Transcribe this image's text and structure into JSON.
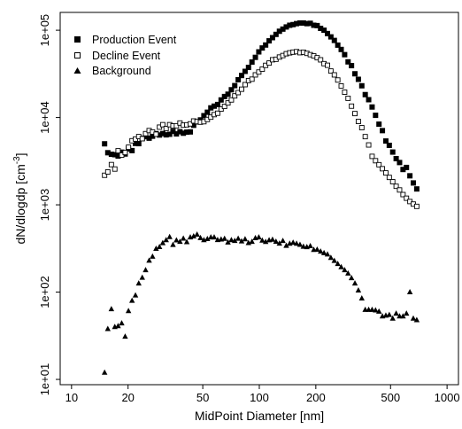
{
  "chart_data": {
    "type": "scatter",
    "xlabel": "MidPoint Diameter [nm]",
    "ylabel": "dN/dlogdp  [cm",
    "ylabel_exp": "-3",
    "ylabel_close": "]",
    "xscale": "log",
    "yscale": "log",
    "xlim": [
      8.7,
      1150
    ],
    "ylim": [
      8.7,
      160000
    ],
    "xticks": [
      10,
      20,
      50,
      100,
      200,
      500,
      1000
    ],
    "xtick_labels": [
      "10",
      "20",
      "50",
      "100",
      "200",
      "500",
      "1000"
    ],
    "yticks": [
      10,
      100,
      1000,
      10000,
      100000
    ],
    "ytick_labels": [
      "1e+01",
      "1e+02",
      "1e+03",
      "1e+04",
      "1e+05"
    ],
    "legend_position": "top-left",
    "grid": false,
    "series": [
      {
        "name": "Production Event",
        "marker": "filled-square",
        "x": [
          15.0,
          15.6,
          16.3,
          17.0,
          17.7,
          18.5,
          19.3,
          20.1,
          21.0,
          21.9,
          22.8,
          23.8,
          24.8,
          25.9,
          27.0,
          28.2,
          29.4,
          30.6,
          31.9,
          33.3,
          34.7,
          36.2,
          37.8,
          39.4,
          41.1,
          42.9,
          44.7,
          46.6,
          48.6,
          50.7,
          52.9,
          55.2,
          57.5,
          60.0,
          62.6,
          65.3,
          68.1,
          71.0,
          74.0,
          77.2,
          80.5,
          84.0,
          87.6,
          91.4,
          95.3,
          99.4,
          103.7,
          108.1,
          112.8,
          117.6,
          122.7,
          128.0,
          133.5,
          139.2,
          145.2,
          151.4,
          157.9,
          164.7,
          171.8,
          179.2,
          186.9,
          195.0,
          203.3,
          212.1,
          221.2,
          230.7,
          240.6,
          251.0,
          261.8,
          273.0,
          284.8,
          297.0,
          309.8,
          323.1,
          337.0,
          351.5,
          366.6,
          382.4,
          398.8,
          416.0,
          433.9,
          452.5,
          472.0,
          492.3,
          513.5,
          535.6,
          558.6,
          582.7,
          607.7,
          633.9,
          661.1,
          689.6
        ],
        "y": [
          5000,
          3950,
          3790,
          3750,
          3620,
          4010,
          3820,
          4370,
          4180,
          5050,
          5020,
          5760,
          6030,
          5800,
          6110,
          6540,
          6300,
          6550,
          6330,
          6430,
          6940,
          6490,
          6880,
          6610,
          6800,
          6840,
          8150,
          8920,
          9390,
          10500,
          11500,
          12900,
          13500,
          14100,
          15900,
          17400,
          18500,
          20800,
          23200,
          27100,
          30300,
          33800,
          37500,
          43200,
          48900,
          56500,
          62600,
          67700,
          75600,
          82200,
          89600,
          97300,
          103000,
          109000,
          114000,
          116000,
          119000,
          121000,
          121000,
          119000,
          120000,
          114000,
          113000,
          105000,
          100000,
          91600,
          83900,
          76400,
          67500,
          60200,
          52500,
          43400,
          39300,
          31700,
          27400,
          23100,
          18300,
          16000,
          13200,
          10600,
          8390,
          7080,
          5380,
          4800,
          4020,
          3380,
          3050,
          2540,
          2680,
          2150,
          1780,
          1520
        ]
      },
      {
        "name": "Decline Event",
        "marker": "open-square",
        "x": [
          15.0,
          15.6,
          16.3,
          17.0,
          17.7,
          18.5,
          19.3,
          20.1,
          21.0,
          21.9,
          22.8,
          23.8,
          24.8,
          25.9,
          27.0,
          28.2,
          29.4,
          30.6,
          31.9,
          33.3,
          34.7,
          36.2,
          37.8,
          39.4,
          41.1,
          42.9,
          44.7,
          46.6,
          48.6,
          50.7,
          52.9,
          55.2,
          57.5,
          60.0,
          62.6,
          65.3,
          68.1,
          71.0,
          74.0,
          77.2,
          80.5,
          84.0,
          87.6,
          91.4,
          95.3,
          99.4,
          103.7,
          108.1,
          112.8,
          117.6,
          122.7,
          128.0,
          133.5,
          139.2,
          145.2,
          151.4,
          157.9,
          164.7,
          171.8,
          179.2,
          186.9,
          195.0,
          203.3,
          212.1,
          221.2,
          230.7,
          240.6,
          251.0,
          261.8,
          273.0,
          284.8,
          297.0,
          309.8,
          323.1,
          337.0,
          351.5,
          366.6,
          382.4,
          398.8,
          416.0,
          433.9,
          452.5,
          472.0,
          492.3,
          513.5,
          535.6,
          558.6,
          582.7,
          607.7,
          633.9,
          661.1,
          689.6
        ],
        "y": [
          2180,
          2380,
          2890,
          2570,
          4160,
          3710,
          3970,
          4570,
          5420,
          5670,
          6050,
          5720,
          6540,
          7090,
          6830,
          6440,
          7760,
          8280,
          7480,
          8280,
          8020,
          8050,
          8650,
          8180,
          8250,
          8460,
          9130,
          8970,
          8850,
          8960,
          9500,
          10100,
          10800,
          11200,
          12500,
          13400,
          14700,
          15900,
          17700,
          19300,
          21100,
          23800,
          26500,
          27500,
          30800,
          33200,
          35800,
          39600,
          42100,
          45900,
          46500,
          49300,
          51300,
          53800,
          55100,
          56100,
          56800,
          55300,
          56000,
          54300,
          52500,
          50800,
          48400,
          45800,
          41400,
          39700,
          34100,
          30800,
          26900,
          23000,
          19500,
          16600,
          13500,
          11100,
          9010,
          7650,
          6040,
          4850,
          3590,
          3200,
          2880,
          2590,
          2320,
          2060,
          1840,
          1630,
          1480,
          1310,
          1190,
          1090,
          1020,
          960
        ]
      },
      {
        "name": "Background",
        "marker": "filled-triangle",
        "x": [
          15.0,
          15.6,
          16.3,
          17.0,
          17.7,
          18.5,
          19.3,
          20.1,
          21.0,
          21.9,
          22.8,
          23.8,
          24.8,
          25.9,
          27.0,
          28.2,
          29.4,
          30.6,
          31.9,
          33.3,
          34.7,
          36.2,
          37.8,
          39.4,
          41.1,
          42.9,
          44.7,
          46.6,
          48.6,
          50.7,
          52.9,
          55.2,
          57.5,
          60.0,
          62.6,
          65.3,
          68.1,
          71.0,
          74.0,
          77.2,
          80.5,
          84.0,
          87.6,
          91.4,
          95.3,
          99.4,
          103.7,
          108.1,
          112.8,
          117.6,
          122.7,
          128.0,
          133.5,
          139.2,
          145.2,
          151.4,
          157.9,
          164.7,
          171.8,
          179.2,
          186.9,
          195.0,
          203.3,
          212.1,
          221.2,
          230.7,
          240.6,
          251.0,
          261.8,
          273.0,
          284.8,
          297.0,
          309.8,
          323.1,
          337.0,
          351.5,
          366.6,
          382.4,
          398.8,
          416.0,
          433.9,
          452.5,
          472.0,
          492.3,
          513.5,
          535.6,
          558.6,
          582.7,
          607.7,
          633.9,
          661.1,
          689.6
        ],
        "y": [
          12,
          38,
          64,
          40,
          41,
          44,
          31,
          61,
          80,
          92,
          126,
          147,
          179,
          230,
          256,
          315,
          330,
          365,
          396,
          429,
          349,
          393,
          379,
          412,
          375,
          426,
          437,
          458,
          418,
          395,
          407,
          426,
          425,
          397,
          402,
          410,
          372,
          395,
          388,
          411,
          383,
          405,
          367,
          378,
          417,
          426,
          391,
          377,
          394,
          400,
          380,
          361,
          388,
          341,
          360,
          370,
          360,
          350,
          333,
          329,
          338,
          306,
          308,
          293,
          281,
          271,
          248,
          229,
          211,
          194,
          179,
          164,
          145,
          126,
          105,
          85,
          63,
          63,
          63,
          62,
          60,
          53,
          54,
          55,
          50,
          57,
          53,
          53,
          57,
          100,
          50,
          48
        ]
      }
    ]
  }
}
